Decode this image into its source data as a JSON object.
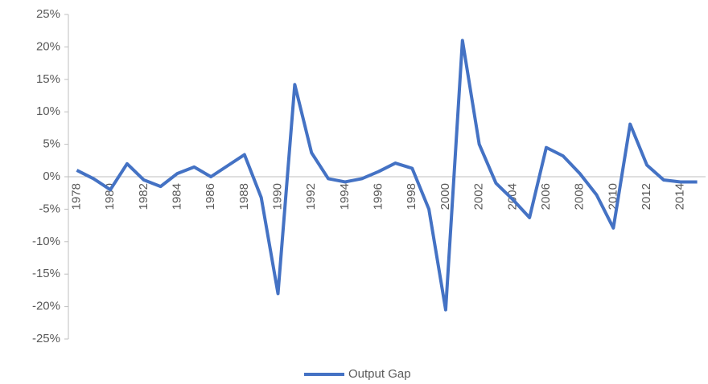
{
  "chart_data": {
    "type": "line",
    "categories": [
      "1978",
      null,
      "1980",
      null,
      "1982",
      null,
      "1984",
      null,
      "1986",
      null,
      "1988",
      null,
      "1990",
      null,
      "1992",
      null,
      "1994",
      null,
      "1996",
      null,
      "1998",
      null,
      "2000",
      null,
      "2002",
      null,
      "2004",
      null,
      "2006",
      null,
      "2008",
      null,
      "2010",
      null,
      "2012",
      null,
      "2014",
      null
    ],
    "series": [
      {
        "name": "Output Gap",
        "color": "#4472c4",
        "values": [
          1,
          -0.3,
          -2,
          2,
          -0.5,
          -1.5,
          0.5,
          1.5,
          0,
          1.7,
          3.4,
          -3.2,
          -18,
          14.2,
          3.7,
          -0.3,
          -0.8,
          -0.3,
          0.8,
          2.1,
          1.3,
          -5,
          -20.5,
          21,
          5,
          -1,
          -3.5,
          -6.3,
          4.5,
          3.2,
          0.5,
          -2.8,
          -7.9,
          8.1,
          1.8,
          -0.5,
          -0.8,
          -0.8
        ]
      }
    ],
    "ylim": [
      -25,
      25
    ],
    "yticks": [
      {
        "value": -25,
        "label": "-25%"
      },
      {
        "value": -20,
        "label": "-20%"
      },
      {
        "value": -15,
        "label": "-15%"
      },
      {
        "value": -10,
        "label": "-10%"
      },
      {
        "value": -5,
        "label": "-5%"
      },
      {
        "value": 0,
        "label": "0%"
      },
      {
        "value": 5,
        "label": "5%"
      },
      {
        "value": 10,
        "label": "10%"
      },
      {
        "value": 15,
        "label": "15%"
      },
      {
        "value": 20,
        "label": "20%"
      },
      {
        "value": 25,
        "label": "25%"
      }
    ],
    "legend": "bottom"
  }
}
